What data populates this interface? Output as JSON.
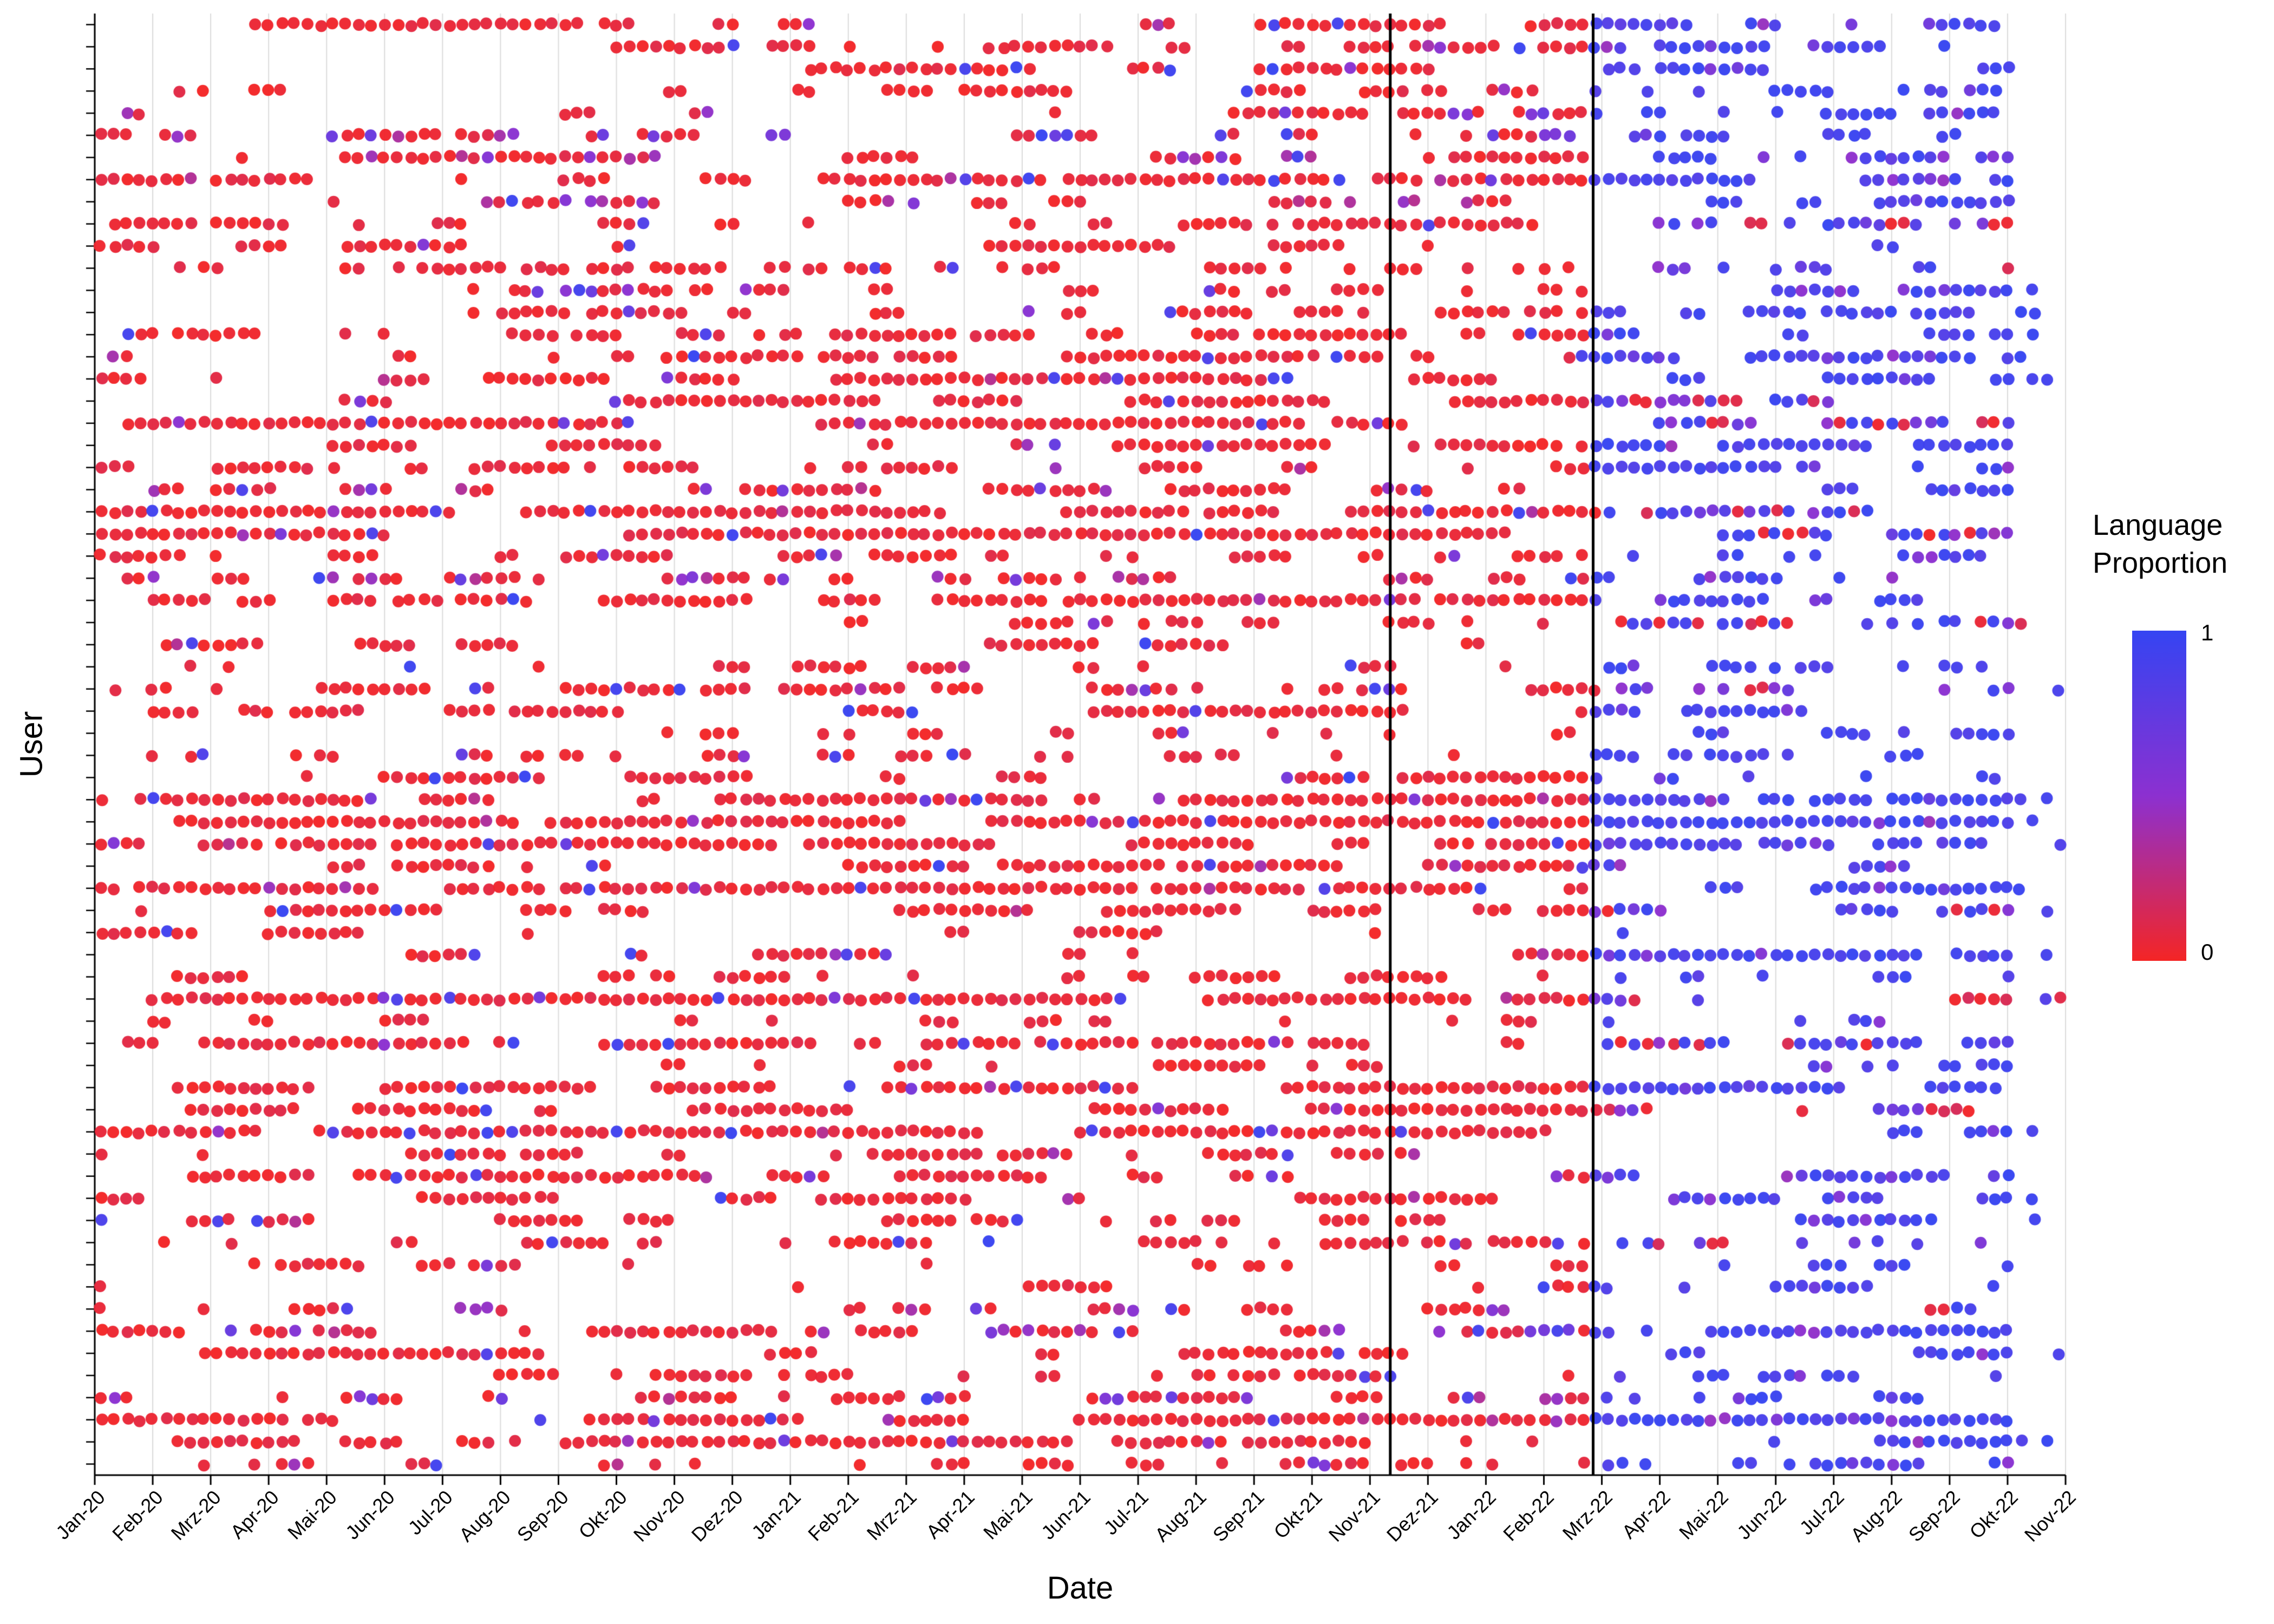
{
  "figure": {
    "background": "#FFFFFF"
  },
  "chart_data": {
    "type": "scatter",
    "title": "",
    "xlabel": "Date",
    "ylabel": "User",
    "x_tick_labels": [
      "Jan-20",
      "Feb-20",
      "Mrz-20",
      "Apr-20",
      "Mai-20",
      "Jun-20",
      "Jul-20",
      "Aug-20",
      "Sep-20",
      "Okt-20",
      "Nov-20",
      "Dez-20",
      "Jan-21",
      "Feb-21",
      "Mrz-21",
      "Apr-21",
      "Mai-21",
      "Jun-21",
      "Jul-21",
      "Aug-21",
      "Sep-21",
      "Okt-21",
      "Nov-21",
      "Dez-21",
      "Jan-22",
      "Feb-22",
      "Mrz-22",
      "Apr-22",
      "Mai-22",
      "Jun-22",
      "Jul-22",
      "Aug-22",
      "Sep-22",
      "Okt-22",
      "Nov-22"
    ],
    "axes": {
      "months_total": 34,
      "x_range": [
        "Jan-20",
        "Nov-22"
      ],
      "y_labels_hidden": true
    },
    "n_users": 66,
    "legend": {
      "title": "Language\nProportion",
      "position": "right",
      "max_label": "1",
      "min_label": "0"
    },
    "color_scale": {
      "low_value": 0,
      "high_value": 1,
      "low": "#F42525",
      "mid": "#8C30D0",
      "high": "#3544F2"
    },
    "grid": {
      "vertical": true,
      "horizontal": false,
      "color": "#DBDBDB"
    },
    "vlines": [
      {
        "month_index": 22.35,
        "approx_date": "Nov-21",
        "color": "#000000"
      },
      {
        "month_index": 25.85,
        "approx_date": "Feb/Mrz-22",
        "color": "#000000"
      }
    ],
    "pattern_summary": "Each row is one user's posting timeline. Points before the two vertical lines are predominantly red (language proportion near 0); after the second line (late Feb 2022) points are predominantly blue/purple (language proportion near 1).",
    "point_generation": {
      "seed": 1337,
      "n_rows": 66,
      "bins_per_month": 4.5,
      "point_radius_px": 11,
      "pre_line_color_mix": {
        "red": 0.88,
        "mid": 0.08,
        "blue": 0.04
      },
      "post_line_color_mix": {
        "blue": 0.62,
        "mid": 0.27,
        "red": 0.11
      }
    }
  }
}
